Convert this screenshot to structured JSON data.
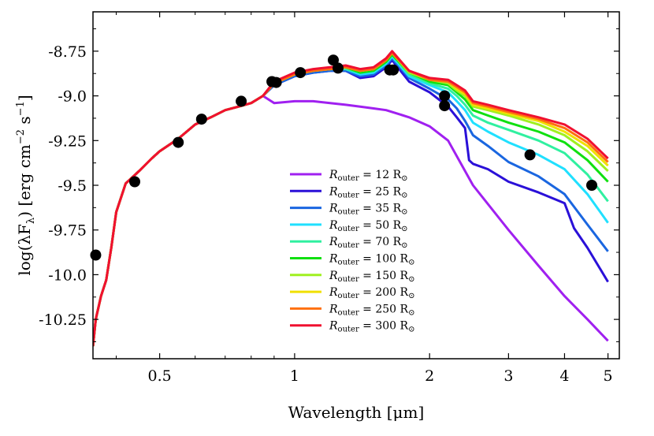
{
  "chart_data": {
    "type": "line",
    "xlabel": "Wavelength [μm]",
    "ylabel": "log(λF",
    "ylabel_sub": "λ",
    "ylabel_units": ") [erg cm",
    "ylabel_exp1": "−2",
    "ylabel_mid": " s",
    "ylabel_exp2": "−1",
    "ylabel_end": "]",
    "xscale": "log",
    "xlim": [
      0.355,
      5.3
    ],
    "ylim": [
      -10.47,
      -8.53
    ],
    "x_ticks": [
      0.5,
      1,
      2,
      3,
      4,
      5
    ],
    "x_tick_labels": [
      "0.5",
      "1",
      "2",
      "3",
      "4",
      "5"
    ],
    "y_ticks": [
      -8.75,
      -9.0,
      -9.25,
      -9.5,
      -9.75,
      -10.0,
      -10.25
    ],
    "y_tick_labels": [
      "-8.75",
      "-9.0",
      "-9.25",
      "-9.5",
      "-9.75",
      "-10.0",
      "-10.25"
    ],
    "legend_position": "center",
    "legend_prefix": "R",
    "legend_sub": "outer",
    "legend_eq": " = ",
    "legend_unit": " R",
    "legend_sun": "⊙",
    "common_base": {
      "x": [
        0.355,
        0.36,
        0.37,
        0.38,
        0.39,
        0.4,
        0.42,
        0.45,
        0.48,
        0.5,
        0.55,
        0.6,
        0.65,
        0.7,
        0.75,
        0.8,
        0.85
      ],
      "y": [
        -10.4,
        -10.25,
        -10.12,
        -10.03,
        -9.85,
        -9.65,
        -9.49,
        -9.42,
        -9.35,
        -9.31,
        -9.24,
        -9.16,
        -9.12,
        -9.08,
        -9.06,
        -9.04,
        -9.0
      ]
    },
    "series": [
      {
        "name": "12",
        "color": "#a020f0",
        "x": [
          0.85,
          0.9,
          1.0,
          1.1,
          1.2,
          1.3,
          1.4,
          1.5,
          1.6,
          1.7,
          1.8,
          2.0,
          2.2,
          2.5,
          3.0,
          3.5,
          4.0,
          4.5,
          5.0
        ],
        "y": [
          -9.06,
          -9.04,
          -9.03,
          -9.03,
          -9.04,
          -9.05,
          -9.06,
          -9.07,
          -9.08,
          -9.1,
          -9.12,
          -9.17,
          -9.25,
          -9.5,
          -9.75,
          -9.95,
          -10.12,
          -10.25,
          -10.37
        ]
      },
      {
        "name": "25",
        "color": "#2a10d8",
        "x": [
          0.85,
          0.9,
          1.0,
          1.1,
          1.2,
          1.3,
          1.4,
          1.5,
          1.6,
          1.65,
          1.8,
          2.0,
          2.2,
          2.3,
          2.4,
          2.45,
          2.5,
          2.7,
          3.0,
          3.5,
          4.0,
          4.2,
          4.5,
          5.0
        ],
        "y": [
          -8.98,
          -8.94,
          -8.89,
          -8.87,
          -8.86,
          -8.86,
          -8.9,
          -8.89,
          -8.84,
          -8.8,
          -8.92,
          -8.98,
          -9.06,
          -9.12,
          -9.18,
          -9.36,
          -9.38,
          -9.41,
          -9.48,
          -9.54,
          -9.6,
          -9.74,
          -9.85,
          -10.04
        ]
      },
      {
        "name": "35",
        "color": "#1a66e0",
        "x": [
          0.85,
          0.9,
          1.0,
          1.1,
          1.2,
          1.3,
          1.4,
          1.5,
          1.6,
          1.65,
          1.8,
          2.0,
          2.2,
          2.3,
          2.4,
          2.5,
          2.7,
          3.0,
          3.5,
          4.0,
          4.5,
          5.0
        ],
        "y": [
          -8.98,
          -8.94,
          -8.89,
          -8.87,
          -8.86,
          -8.86,
          -8.89,
          -8.88,
          -8.83,
          -8.79,
          -8.9,
          -8.96,
          -9.02,
          -9.07,
          -9.14,
          -9.22,
          -9.28,
          -9.37,
          -9.45,
          -9.55,
          -9.72,
          -9.87
        ]
      },
      {
        "name": "50",
        "color": "#20e0ff",
        "x": [
          0.85,
          0.9,
          1.0,
          1.1,
          1.2,
          1.3,
          1.4,
          1.5,
          1.6,
          1.65,
          1.8,
          2.0,
          2.2,
          2.3,
          2.4,
          2.5,
          2.7,
          3.0,
          3.5,
          4.0,
          4.5,
          5.0
        ],
        "y": [
          -8.97,
          -8.93,
          -8.88,
          -8.86,
          -8.85,
          -8.85,
          -8.88,
          -8.87,
          -8.82,
          -8.78,
          -8.89,
          -8.94,
          -8.98,
          -9.03,
          -9.08,
          -9.15,
          -9.2,
          -9.26,
          -9.33,
          -9.41,
          -9.55,
          -9.71
        ]
      },
      {
        "name": "70",
        "color": "#30f0a0",
        "x": [
          0.85,
          0.9,
          1.0,
          1.1,
          1.2,
          1.3,
          1.4,
          1.5,
          1.6,
          1.65,
          1.8,
          2.0,
          2.2,
          2.3,
          2.4,
          2.5,
          2.7,
          3.0,
          3.5,
          4.0,
          4.5,
          5.0
        ],
        "y": [
          -8.97,
          -8.93,
          -8.88,
          -8.86,
          -8.85,
          -8.85,
          -8.87,
          -8.86,
          -8.81,
          -8.77,
          -8.88,
          -8.93,
          -8.96,
          -9.0,
          -9.05,
          -9.11,
          -9.15,
          -9.19,
          -9.25,
          -9.32,
          -9.44,
          -9.59
        ]
      },
      {
        "name": "100",
        "color": "#10e010",
        "x": [
          0.85,
          0.9,
          1.0,
          1.1,
          1.2,
          1.3,
          1.4,
          1.5,
          1.6,
          1.65,
          1.8,
          2.0,
          2.2,
          2.3,
          2.4,
          2.5,
          2.7,
          3.0,
          3.5,
          4.0,
          4.5,
          5.0
        ],
        "y": [
          -8.97,
          -8.93,
          -8.88,
          -8.86,
          -8.85,
          -8.84,
          -8.87,
          -8.86,
          -8.81,
          -8.77,
          -8.87,
          -8.92,
          -8.94,
          -8.98,
          -9.02,
          -9.08,
          -9.11,
          -9.15,
          -9.2,
          -9.26,
          -9.36,
          -9.48
        ]
      },
      {
        "name": "150",
        "color": "#a0f020",
        "x": [
          0.85,
          0.9,
          1.0,
          1.1,
          1.2,
          1.3,
          1.4,
          1.5,
          1.6,
          1.65,
          1.8,
          2.0,
          2.2,
          2.3,
          2.4,
          2.5,
          2.7,
          3.0,
          3.5,
          4.0,
          4.5,
          5.0
        ],
        "y": [
          -8.97,
          -8.93,
          -8.88,
          -8.86,
          -8.85,
          -8.84,
          -8.86,
          -8.85,
          -8.8,
          -8.76,
          -8.87,
          -8.91,
          -8.93,
          -8.97,
          -9.0,
          -9.06,
          -9.08,
          -9.11,
          -9.16,
          -9.22,
          -9.31,
          -9.42
        ]
      },
      {
        "name": "200",
        "color": "#f0e000",
        "x": [
          0.85,
          0.9,
          1.0,
          1.1,
          1.2,
          1.3,
          1.4,
          1.5,
          1.6,
          1.65,
          1.8,
          2.0,
          2.2,
          2.3,
          2.4,
          2.5,
          2.7,
          3.0,
          3.5,
          4.0,
          4.5,
          5.0
        ],
        "y": [
          -8.97,
          -8.93,
          -8.88,
          -8.86,
          -8.85,
          -8.84,
          -8.86,
          -8.85,
          -8.8,
          -8.76,
          -8.86,
          -8.91,
          -8.92,
          -8.96,
          -8.99,
          -9.05,
          -9.07,
          -9.1,
          -9.14,
          -9.2,
          -9.28,
          -9.39
        ]
      },
      {
        "name": "250",
        "color": "#ff7010",
        "x": [
          0.85,
          0.9,
          1.0,
          1.1,
          1.2,
          1.3,
          1.4,
          1.5,
          1.6,
          1.65,
          1.8,
          2.0,
          2.2,
          2.3,
          2.4,
          2.5,
          2.7,
          3.0,
          3.5,
          4.0,
          4.5,
          5.0
        ],
        "y": [
          -8.97,
          -8.93,
          -8.88,
          -8.86,
          -8.85,
          -8.84,
          -8.86,
          -8.85,
          -8.8,
          -8.76,
          -8.86,
          -8.91,
          -8.92,
          -8.95,
          -8.98,
          -9.04,
          -9.06,
          -9.09,
          -9.13,
          -9.18,
          -9.26,
          -9.37
        ]
      },
      {
        "name": "300",
        "color": "#f01030",
        "x": [
          0.85,
          0.9,
          1.0,
          1.1,
          1.2,
          1.3,
          1.4,
          1.5,
          1.6,
          1.65,
          1.8,
          2.0,
          2.2,
          2.3,
          2.4,
          2.5,
          2.7,
          3.0,
          3.5,
          4.0,
          4.5,
          5.0
        ],
        "y": [
          -8.96,
          -8.92,
          -8.87,
          -8.85,
          -8.84,
          -8.83,
          -8.85,
          -8.84,
          -8.79,
          -8.75,
          -8.86,
          -8.9,
          -8.91,
          -8.94,
          -8.97,
          -9.03,
          -9.05,
          -9.08,
          -9.12,
          -9.16,
          -9.24,
          -9.35
        ]
      }
    ],
    "observed_points": [
      {
        "x": 0.36,
        "y": -9.89
      },
      {
        "x": 0.44,
        "y": -9.48
      },
      {
        "x": 0.55,
        "y": -9.26
      },
      {
        "x": 0.62,
        "y": -9.13
      },
      {
        "x": 0.76,
        "y": -9.03
      },
      {
        "x": 0.89,
        "y": -8.92
      },
      {
        "x": 0.91,
        "y": -8.925
      },
      {
        "x": 1.03,
        "y": -8.87
      },
      {
        "x": 1.22,
        "y": -8.8
      },
      {
        "x": 1.25,
        "y": -8.845
      },
      {
        "x": 1.63,
        "y": -8.855
      },
      {
        "x": 1.66,
        "y": -8.855
      },
      {
        "x": 2.16,
        "y": -9.0
      },
      {
        "x": 2.16,
        "y": -9.055
      },
      {
        "x": 3.35,
        "y": -9.33
      },
      {
        "x": 4.6,
        "y": -9.5
      }
    ]
  }
}
